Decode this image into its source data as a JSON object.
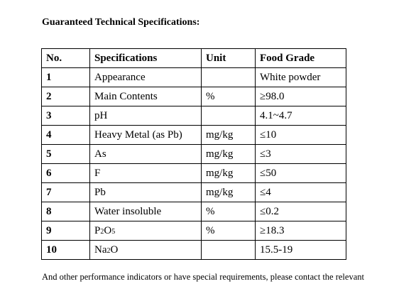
{
  "heading": "Guaranteed Technical Specifications:",
  "table": {
    "headers": [
      "No.",
      "Specifications",
      "Unit",
      "Food Grade"
    ],
    "rows": [
      {
        "no": "1",
        "spec": "Appearance",
        "unit": "",
        "grade": "White powder"
      },
      {
        "no": "2",
        "spec": "Main Contents",
        "unit": "%",
        "grade": "≥98.0"
      },
      {
        "no": "3",
        "spec": "pH",
        "unit": "",
        "grade": "4.1~4.7"
      },
      {
        "no": "4",
        "spec": "Heavy Metal (as Pb)",
        "unit": "mg/kg",
        "grade": "≤10"
      },
      {
        "no": "5",
        "spec": "As",
        "unit": "mg/kg",
        "grade": "≤3"
      },
      {
        "no": "6",
        "spec": "F",
        "unit": "mg/kg",
        "grade": "≤50"
      },
      {
        "no": "7",
        "spec": "Pb",
        "unit": "mg/kg",
        "grade": "≤4"
      },
      {
        "no": "8",
        "spec": "Water insoluble",
        "unit": "%",
        "grade": "≤0.2"
      },
      {
        "no": "9",
        "spec_parts": [
          "P",
          "2",
          "O",
          "5"
        ],
        "unit": "%",
        "grade": "≥18.3"
      },
      {
        "no": "10",
        "spec_parts": [
          "Na",
          "2",
          "O"
        ],
        "unit": "",
        "grade": "15.5-19"
      }
    ]
  },
  "footer": "And other performance indicators or have special requirements, please contact the relevant"
}
